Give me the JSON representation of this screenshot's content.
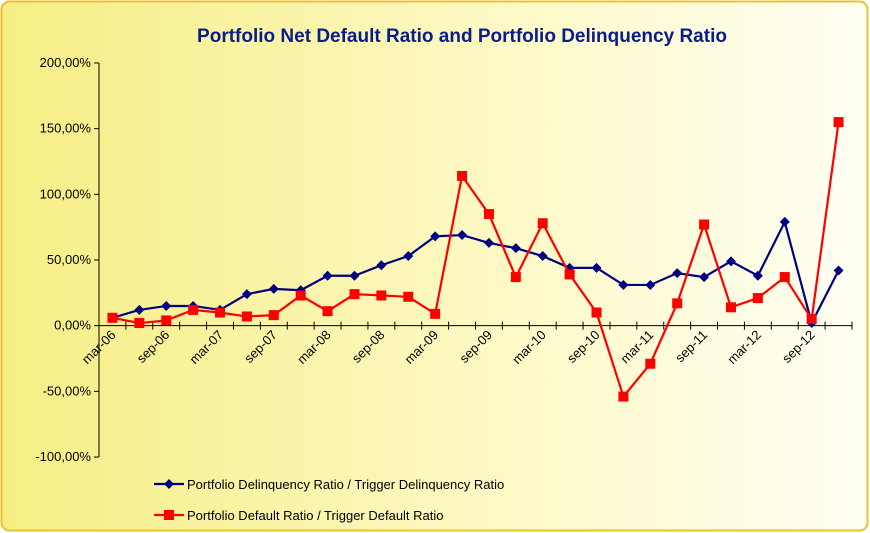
{
  "chart_data": {
    "type": "line",
    "title": "Portfolio Net Default Ratio and Portfolio Delinquency Ratio",
    "categories": [
      "mar-06",
      null,
      "sep-06",
      null,
      "mar-07",
      null,
      "sep-07",
      null,
      "mar-08",
      null,
      "sep-08",
      null,
      "mar-09",
      null,
      "sep-09",
      null,
      "mar-10",
      null,
      "sep-10",
      null,
      "mar-11",
      null,
      "sep-11",
      null,
      "mar-12",
      null,
      "sep-12",
      null
    ],
    "series": [
      {
        "name": "Portfolio Delinquency Ratio / Trigger Delinquency Ratio",
        "color": "#000080",
        "marker": "diamond",
        "values": [
          6,
          12,
          15,
          15,
          12,
          24,
          28,
          27,
          38,
          38,
          46,
          53,
          68,
          69,
          63,
          59,
          53,
          44,
          44,
          31,
          31,
          40,
          37,
          49,
          38,
          79,
          2,
          42
        ]
      },
      {
        "name": "Portfolio Default Ratio / Trigger Default Ratio",
        "color": "#ff0000",
        "marker": "square",
        "values": [
          6,
          2,
          4,
          12,
          10,
          7,
          8,
          23,
          11,
          24,
          23,
          22,
          9,
          114,
          85,
          37,
          78,
          39,
          10,
          -54,
          -29,
          17,
          77,
          14,
          21,
          37,
          5,
          155
        ]
      }
    ],
    "ylim": [
      -100,
      200
    ],
    "yticks": [
      {
        "value": -100,
        "label": "-100,00%"
      },
      {
        "value": -50,
        "label": "-50,00%"
      },
      {
        "value": 0,
        "label": "0,00%"
      },
      {
        "value": 50,
        "label": "50,00%"
      },
      {
        "value": 100,
        "label": "100,00%"
      },
      {
        "value": 150,
        "label": "150,00%"
      },
      {
        "value": 200,
        "label": "200,00%"
      }
    ],
    "grid": false,
    "legend": "bottom"
  }
}
